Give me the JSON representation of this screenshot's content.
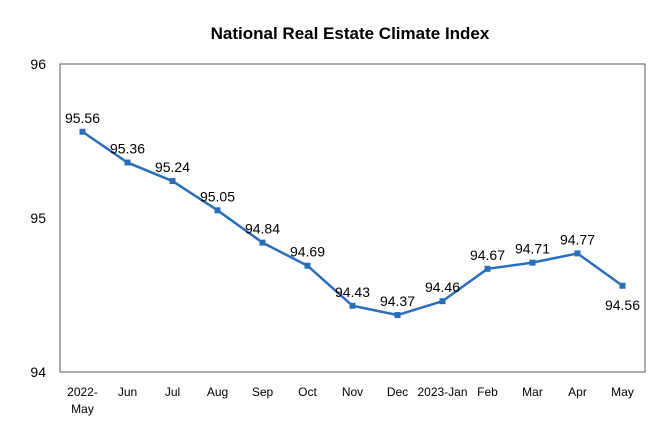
{
  "chart_data": {
    "type": "line",
    "title": "National Real Estate Climate Index",
    "xlabel": "",
    "ylabel": "",
    "categories": [
      "2022-\nMay",
      "Jun",
      "Jul",
      "Aug",
      "Sep",
      "Oct",
      "Nov",
      "Dec",
      "2023-Jan",
      "Feb",
      "Mar",
      "Apr",
      "May"
    ],
    "series": [
      {
        "values": [
          95.56,
          95.36,
          95.24,
          95.05,
          94.84,
          94.69,
          94.43,
          94.37,
          94.46,
          94.67,
          94.71,
          94.77,
          94.56
        ],
        "labels": [
          "95.56",
          "95.36",
          "95.24",
          "95.05",
          "94.84",
          "94.69",
          "94.43",
          "94.37",
          "94.46",
          "94.67",
          "94.71",
          "94.77",
          "94.56"
        ],
        "color": "#2a6ebb"
      }
    ],
    "ylim": [
      94,
      96
    ],
    "yticks": [
      94,
      95,
      96
    ],
    "ytick_labels": [
      "94",
      "95",
      "96"
    ],
    "grid": false,
    "legend": "none"
  }
}
